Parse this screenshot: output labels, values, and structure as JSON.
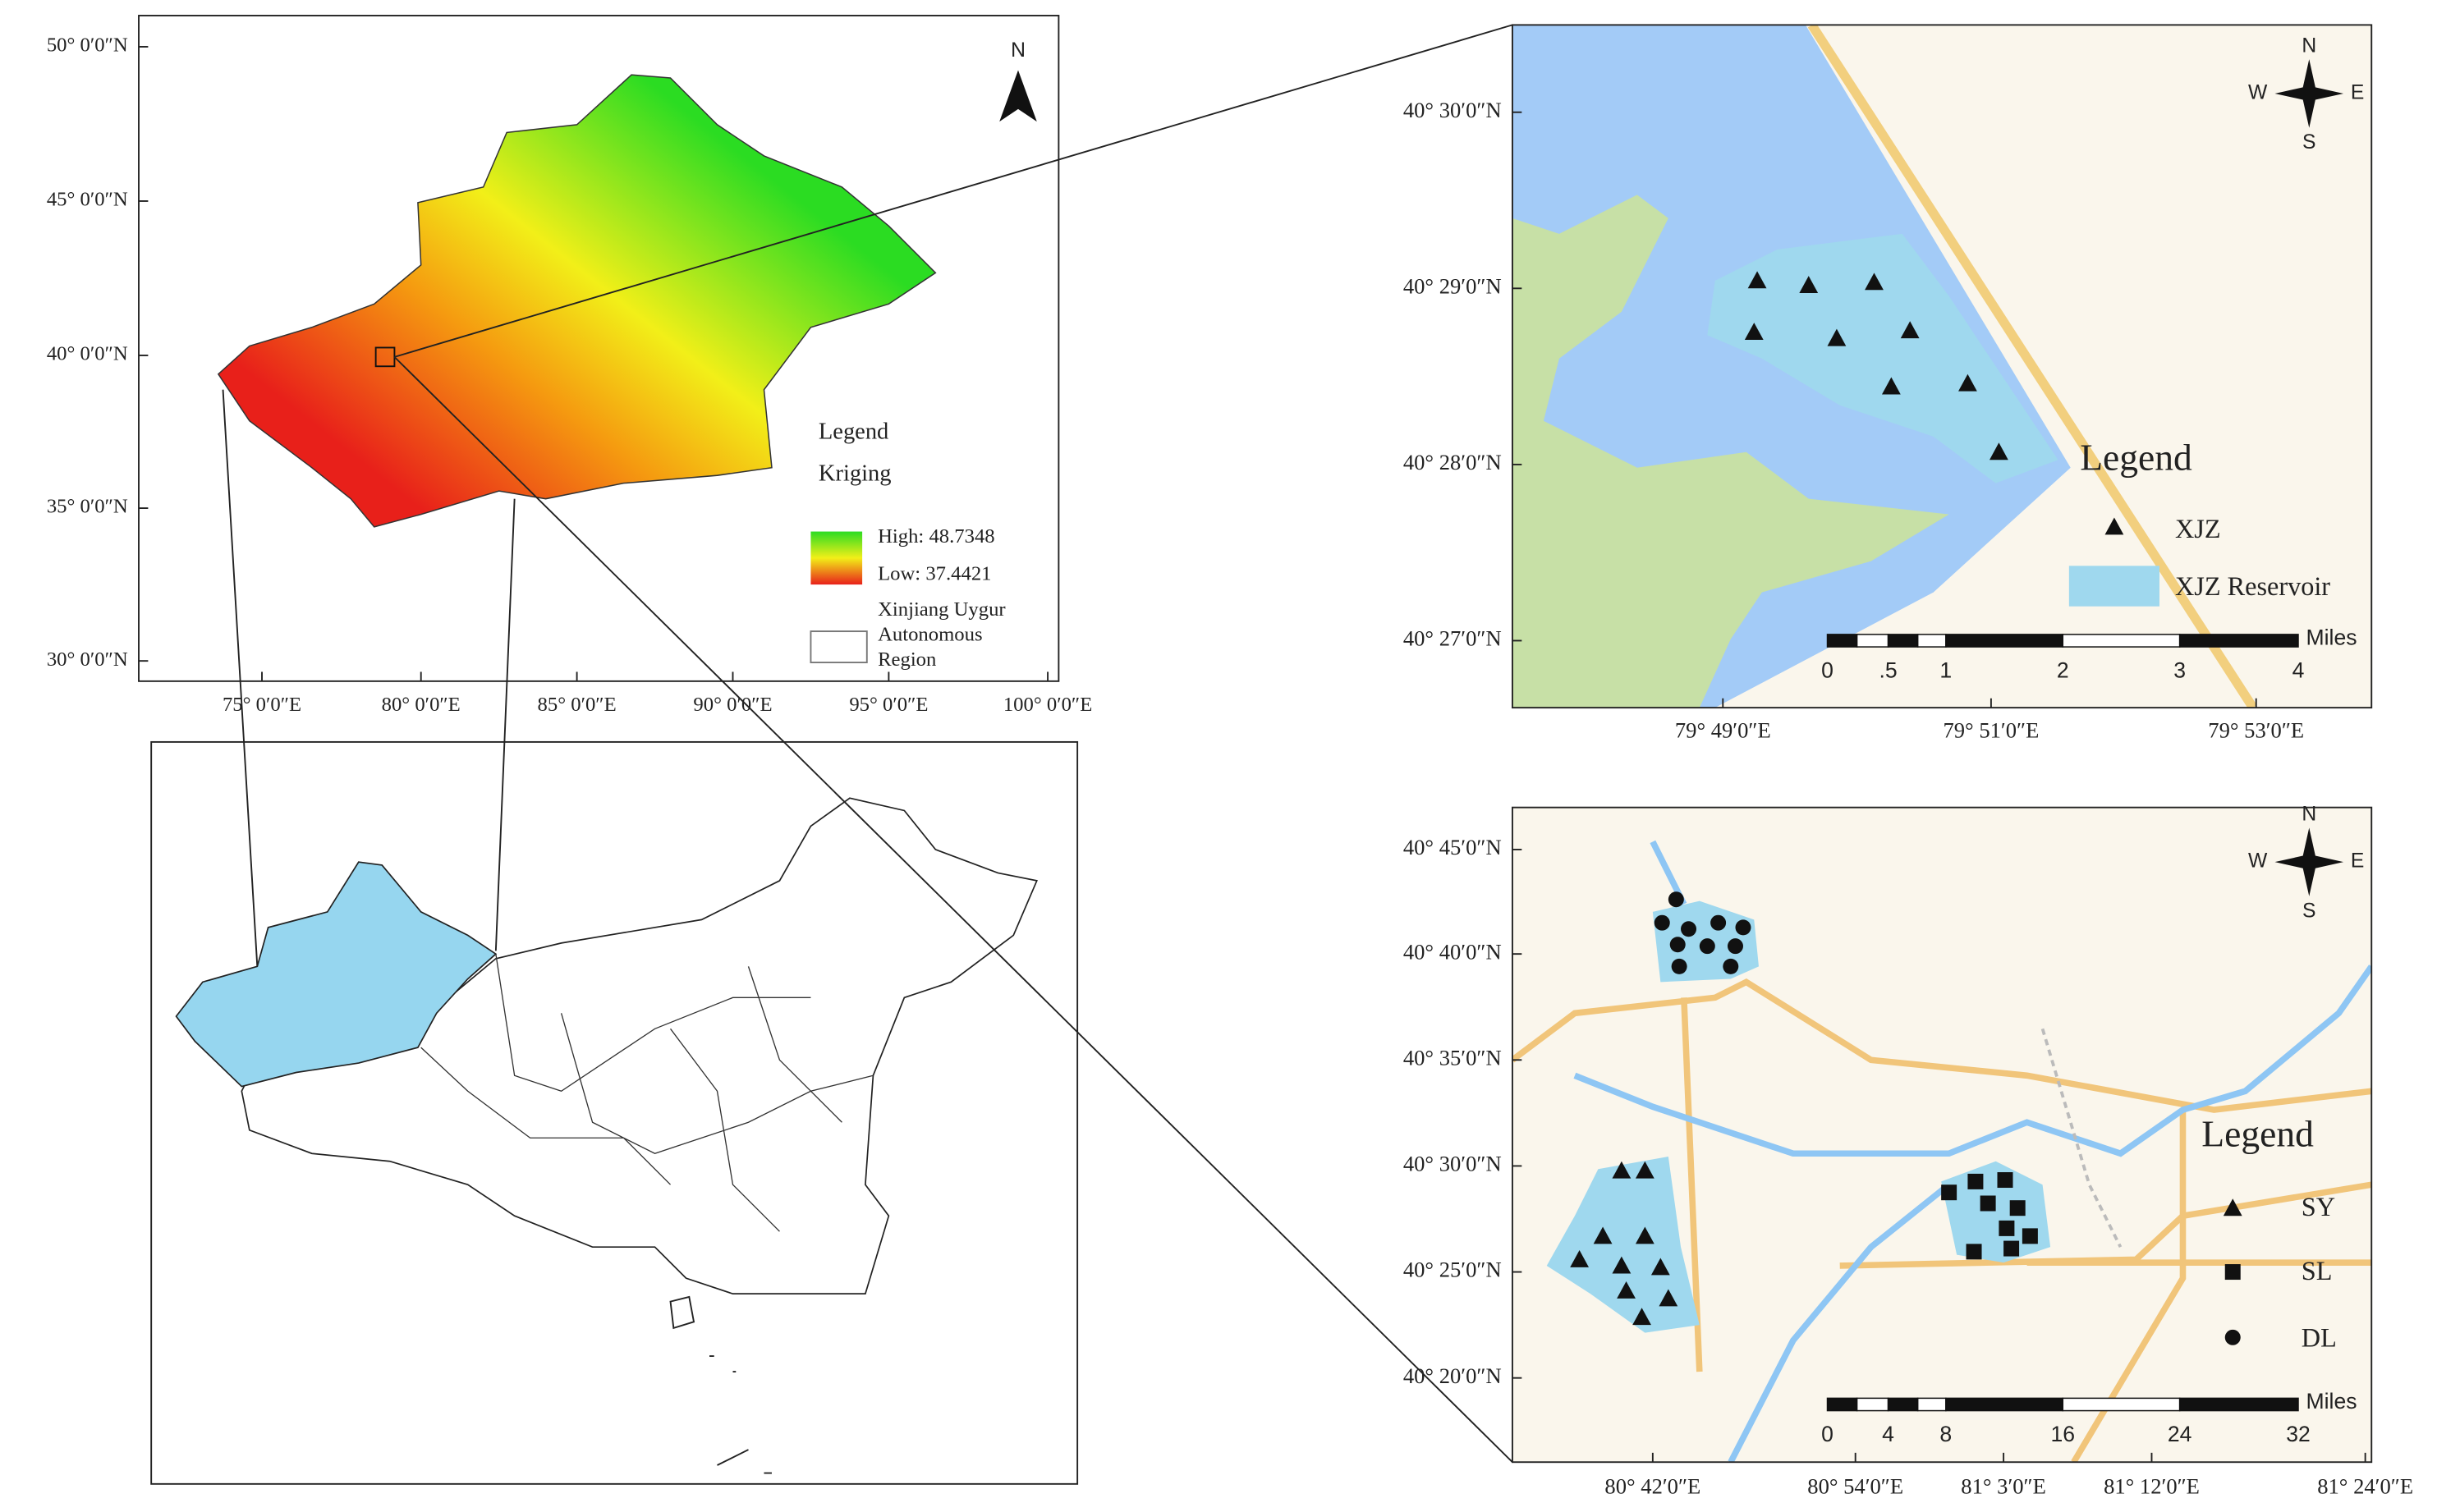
{
  "xinjiang_map": {
    "lat_labels": [
      "50° 0′0″N",
      "45° 0′0″N",
      "40° 0′0″N",
      "35° 0′0″N",
      "30° 0′0″N"
    ],
    "lon_labels": [
      "75° 0′0″E",
      "80° 0′0″E",
      "85° 0′0″E",
      "90° 0′0″E",
      "95° 0′0″E",
      "100° 0′0″E"
    ],
    "north": "N",
    "legend": {
      "title": "Legend",
      "subtitle": "Kriging",
      "high": "High: 48.7348",
      "low": "Low: 37.4421",
      "region": [
        "Xinjiang Uygur",
        "Autonomous",
        "Region"
      ]
    }
  },
  "xjz_map": {
    "lat_labels": [
      "40° 30′0″N",
      "40° 29′0″N",
      "40° 28′0″N",
      "40° 27′0″N"
    ],
    "lon_labels": [
      "79° 49′0″E",
      "79° 51′0″E",
      "79° 53′0″E"
    ],
    "compass": {
      "n": "N",
      "w": "W",
      "e": "E",
      "s": "S"
    },
    "legend": {
      "title": "Legend",
      "items": [
        "XJZ",
        "XJZ Reservoir"
      ]
    },
    "scale": {
      "labels": [
        "0",
        ".5",
        "1",
        "2",
        "3",
        "4"
      ],
      "unit": "Miles"
    }
  },
  "sy_map": {
    "lat_labels": [
      "40° 45′0″N",
      "40° 40′0″N",
      "40° 35′0″N",
      "40° 30′0″N",
      "40° 25′0″N",
      "40° 20′0″N"
    ],
    "lon_labels": [
      "80° 42′0″E",
      "80° 54′0″E",
      "81° 3′0″E",
      "81° 12′0″E",
      "81° 24′0″E"
    ],
    "compass": {
      "n": "N",
      "w": "W",
      "e": "E",
      "s": "S"
    },
    "legend": {
      "title": "Legend",
      "items": [
        "SY",
        "SL",
        "DL"
      ]
    },
    "scale": {
      "labels": [
        "0",
        "4",
        "8",
        "16",
        "24",
        "32"
      ],
      "unit": "Miles"
    }
  }
}
